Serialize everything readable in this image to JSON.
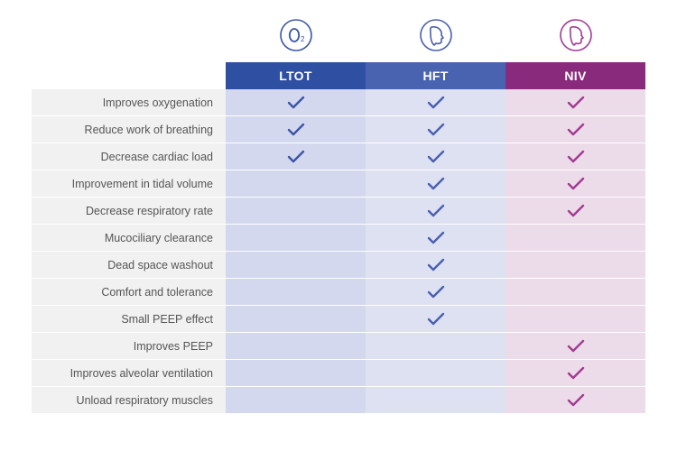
{
  "columns": [
    {
      "key": "ltot",
      "label": "LTOT",
      "header_bg": "#2f4fa3",
      "cell_bg": "#d3d8ee",
      "check_color": "#3b55a5",
      "icon_stroke": "#3b55a5",
      "icon": "o2"
    },
    {
      "key": "hft",
      "label": "HFT",
      "header_bg": "#4a63b0",
      "cell_bg": "#dde1f1",
      "check_color": "#4a5fb0",
      "icon_stroke": "#4a5fb0",
      "icon": "face1"
    },
    {
      "key": "niv",
      "label": "NIV",
      "header_bg": "#8a2a7d",
      "cell_bg": "#ecdbe9",
      "check_color": "#a23b92",
      "icon_stroke": "#a23b92",
      "icon": "face2"
    }
  ],
  "rows": [
    {
      "label": "Improves oxygenation",
      "checks": {
        "ltot": true,
        "hft": true,
        "niv": true
      }
    },
    {
      "label": "Reduce work of breathing",
      "checks": {
        "ltot": true,
        "hft": true,
        "niv": true
      }
    },
    {
      "label": "Decrease cardiac load",
      "checks": {
        "ltot": true,
        "hft": true,
        "niv": true
      }
    },
    {
      "label": "Improvement in tidal volume",
      "checks": {
        "ltot": false,
        "hft": true,
        "niv": true
      }
    },
    {
      "label": "Decrease respiratory rate",
      "checks": {
        "ltot": false,
        "hft": true,
        "niv": true
      }
    },
    {
      "label": "Mucociliary clearance",
      "checks": {
        "ltot": false,
        "hft": true,
        "niv": false
      }
    },
    {
      "label": "Dead space washout",
      "checks": {
        "ltot": false,
        "hft": true,
        "niv": false
      }
    },
    {
      "label": "Comfort and tolerance",
      "checks": {
        "ltot": false,
        "hft": true,
        "niv": false
      }
    },
    {
      "label": "Small PEEP effect",
      "checks": {
        "ltot": false,
        "hft": true,
        "niv": false
      }
    },
    {
      "label": "Improves PEEP",
      "checks": {
        "ltot": false,
        "hft": false,
        "niv": true
      }
    },
    {
      "label": "Improves alveolar ventilation",
      "checks": {
        "ltot": false,
        "hft": false,
        "niv": true
      }
    },
    {
      "label": "Unload respiratory muscles",
      "checks": {
        "ltot": false,
        "hft": false,
        "niv": true
      }
    }
  ],
  "rowlabel_bg": "#f1f1f1",
  "icon_circle_size": 38,
  "check_stroke_width": 2.4
}
